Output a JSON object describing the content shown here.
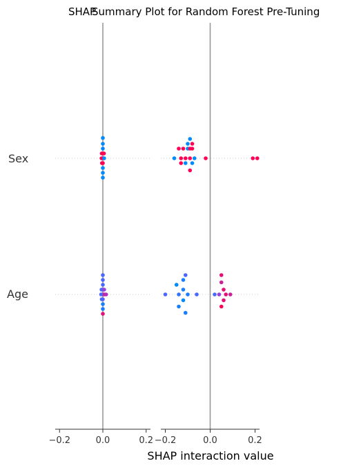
{
  "chart_data": {
    "type": "scatter",
    "title_left": "SHAP",
    "title": "Summary Plot for Random Forest Pre-Tuning",
    "xlabel": "SHAP interaction value",
    "features": [
      "Sex",
      "Age"
    ],
    "panels": [
      {
        "name": "Sex",
        "xlim": [
          -0.22,
          0.22
        ],
        "xticks": [
          "−0.2",
          "0.0",
          "0.2"
        ],
        "xtick_values": [
          -0.2,
          0.0,
          0.2
        ],
        "rows": {
          "Sex": [
            {
              "x": 0.0,
              "y": -0.42,
              "c": 0.0
            },
            {
              "x": 0.0,
              "y": -0.3,
              "c": 0.0
            },
            {
              "x": 0.0,
              "y": -0.2,
              "c": 0.0
            },
            {
              "x": 0.0,
              "y": -0.1,
              "c": 0.5
            },
            {
              "x": -0.005,
              "y": -0.1,
              "c": 1.0
            },
            {
              "x": 0.005,
              "y": -0.1,
              "c": 1.0
            },
            {
              "x": 0.0,
              "y": 0.0,
              "c": 1.0
            },
            {
              "x": -0.006,
              "y": 0.0,
              "c": 1.0
            },
            {
              "x": 0.006,
              "y": 0.0,
              "c": 0.0
            },
            {
              "x": 0.0,
              "y": 0.1,
              "c": 1.0
            },
            {
              "x": -0.004,
              "y": 0.1,
              "c": 1.0
            },
            {
              "x": 0.0,
              "y": 0.2,
              "c": 0.0
            },
            {
              "x": 0.0,
              "y": 0.3,
              "c": 0.0
            },
            {
              "x": 0.0,
              "y": 0.4,
              "c": 0.0
            }
          ],
          "Age": [
            {
              "x": 0.0,
              "y": -0.4,
              "c": 0.3
            },
            {
              "x": 0.0,
              "y": -0.3,
              "c": 0.3
            },
            {
              "x": 0.0,
              "y": -0.2,
              "c": 0.3
            },
            {
              "x": 0.0,
              "y": -0.1,
              "c": 0.6
            },
            {
              "x": -0.006,
              "y": -0.1,
              "c": 0.3
            },
            {
              "x": 0.006,
              "y": -0.1,
              "c": 0.6
            },
            {
              "x": 0.0,
              "y": 0.0,
              "c": 0.8
            },
            {
              "x": -0.008,
              "y": 0.0,
              "c": 0.3
            },
            {
              "x": 0.008,
              "y": 0.0,
              "c": 0.8
            },
            {
              "x": 0.015,
              "y": 0.0,
              "c": 0.7
            },
            {
              "x": 0.0,
              "y": 0.1,
              "c": 0.4
            },
            {
              "x": -0.005,
              "y": 0.1,
              "c": 0.3
            },
            {
              "x": 0.0,
              "y": 0.2,
              "c": 0.1
            },
            {
              "x": 0.0,
              "y": 0.3,
              "c": 0.1
            },
            {
              "x": 0.0,
              "y": 0.4,
              "c": 0.9
            }
          ]
        }
      },
      {
        "name": "Age",
        "xlim": [
          -0.22,
          0.22
        ],
        "xticks": [
          "−0.2",
          "0.0",
          "0.2"
        ],
        "xtick_values": [
          -0.2,
          0.0,
          0.2
        ],
        "rows": {
          "Sex": [
            {
              "x": -0.09,
              "y": -0.4,
              "c": 0.0
            },
            {
              "x": -0.1,
              "y": -0.3,
              "c": 0.0
            },
            {
              "x": -0.08,
              "y": -0.3,
              "c": 1.0
            },
            {
              "x": -0.14,
              "y": -0.2,
              "c": 1.0
            },
            {
              "x": -0.12,
              "y": -0.2,
              "c": 1.0
            },
            {
              "x": -0.1,
              "y": -0.2,
              "c": 0.0
            },
            {
              "x": -0.09,
              "y": -0.2,
              "c": 1.0
            },
            {
              "x": -0.08,
              "y": -0.2,
              "c": 1.0
            },
            {
              "x": -0.16,
              "y": 0.0,
              "c": 0.0
            },
            {
              "x": -0.13,
              "y": 0.0,
              "c": 1.0
            },
            {
              "x": -0.11,
              "y": 0.0,
              "c": 1.0
            },
            {
              "x": -0.09,
              "y": 0.0,
              "c": 1.0
            },
            {
              "x": -0.07,
              "y": 0.0,
              "c": 0.0
            },
            {
              "x": -0.02,
              "y": 0.0,
              "c": 1.0
            },
            {
              "x": -0.13,
              "y": 0.1,
              "c": 1.0
            },
            {
              "x": -0.11,
              "y": 0.1,
              "c": 0.0
            },
            {
              "x": -0.08,
              "y": 0.1,
              "c": 0.0
            },
            {
              "x": -0.09,
              "y": 0.25,
              "c": 1.0
            },
            {
              "x": 0.19,
              "y": 0.0,
              "c": 1.0
            },
            {
              "x": 0.21,
              "y": 0.0,
              "c": 1.0
            }
          ],
          "Age": [
            {
              "x": -0.11,
              "y": -0.4,
              "c": 0.3
            },
            {
              "x": -0.12,
              "y": -0.3,
              "c": 0.1
            },
            {
              "x": -0.15,
              "y": -0.2,
              "c": 0.0
            },
            {
              "x": -0.12,
              "y": -0.1,
              "c": 0.1
            },
            {
              "x": -0.2,
              "y": 0.0,
              "c": 0.3
            },
            {
              "x": -0.14,
              "y": 0.0,
              "c": 0.2
            },
            {
              "x": -0.1,
              "y": 0.0,
              "c": 0.1
            },
            {
              "x": -0.06,
              "y": 0.0,
              "c": 0.3
            },
            {
              "x": -0.12,
              "y": 0.12,
              "c": 0.0
            },
            {
              "x": -0.14,
              "y": 0.25,
              "c": 0.1
            },
            {
              "x": -0.11,
              "y": 0.38,
              "c": 0.1
            },
            {
              "x": 0.05,
              "y": -0.4,
              "c": 0.9
            },
            {
              "x": 0.05,
              "y": -0.25,
              "c": 0.8
            },
            {
              "x": 0.06,
              "y": -0.1,
              "c": 0.9
            },
            {
              "x": 0.04,
              "y": 0.0,
              "c": 0.6
            },
            {
              "x": 0.07,
              "y": 0.0,
              "c": 0.9
            },
            {
              "x": 0.09,
              "y": 0.0,
              "c": 0.8
            },
            {
              "x": 0.02,
              "y": 0.0,
              "c": 0.3
            },
            {
              "x": 0.06,
              "y": 0.12,
              "c": 0.9
            },
            {
              "x": 0.05,
              "y": 0.25,
              "c": 1.0
            }
          ]
        }
      }
    ],
    "colors": {
      "low": "#008afb",
      "high": "#ff0052",
      "zero_line": "#999999",
      "row_line": "#cccccc",
      "axis": "#333333"
    }
  }
}
